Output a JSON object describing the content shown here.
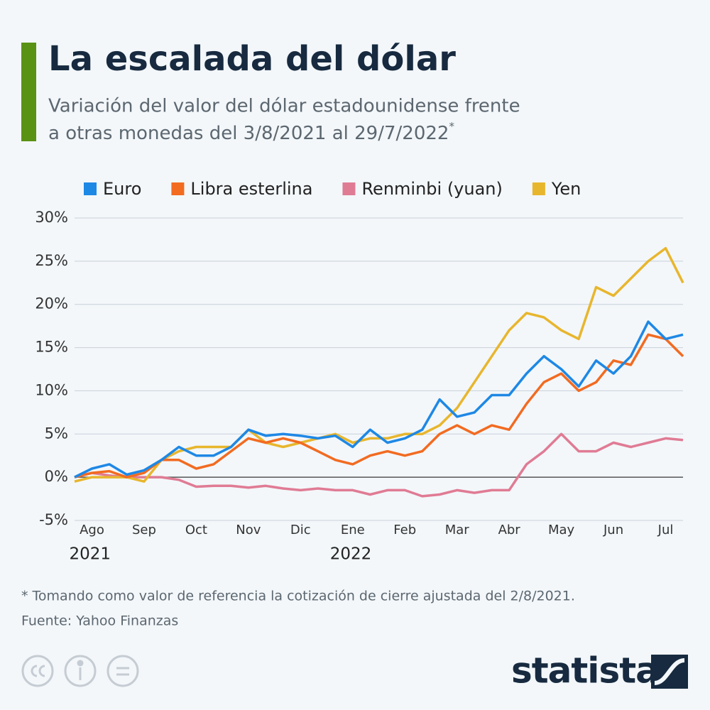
{
  "chart_data": {
    "type": "line",
    "title": "La escalada del dólar",
    "subtitle": [
      "Variación del valor del dólar estadounidense frente",
      "a otras monedas del 3/8/2021 al 29/7/2022"
    ],
    "subtitle_note_mark": "*",
    "categories": [
      null,
      "Ago",
      null,
      null,
      "Sep",
      null,
      null,
      "Oct",
      null,
      null,
      "Nov",
      null,
      null,
      "Dic",
      null,
      null,
      "Ene",
      null,
      null,
      "Feb",
      null,
      null,
      "Mar",
      null,
      null,
      "Abr",
      null,
      null,
      "May",
      null,
      null,
      "Jun",
      null,
      null,
      "Jul",
      null
    ],
    "x_groups": [
      {
        "label": "2021",
        "category": "Ago"
      },
      {
        "label": "2022",
        "category": "Ene"
      }
    ],
    "series": [
      {
        "name": "Euro",
        "color": "#1e88e5",
        "values": [
          0,
          1,
          1.5,
          0.3,
          0.8,
          2,
          3.5,
          2.5,
          2.5,
          3.5,
          5.5,
          4.8,
          5,
          4.8,
          4.5,
          4.8,
          3.5,
          5.5,
          4,
          4.5,
          5.5,
          9,
          7,
          7.5,
          9.5,
          9.5,
          12,
          14,
          12.5,
          10.5,
          13.5,
          12,
          14,
          18,
          16,
          16.5
        ]
      },
      {
        "name": "Libra esterlina",
        "color": "#f26b21",
        "values": [
          0,
          0.5,
          0.7,
          0,
          0.5,
          2,
          2,
          1,
          1.5,
          3,
          4.5,
          4,
          4.5,
          4,
          3,
          2,
          1.5,
          2.5,
          3,
          2.5,
          3,
          5,
          6,
          5,
          6,
          5.5,
          8.5,
          11,
          12,
          10,
          11,
          13.5,
          13,
          16.5,
          16,
          14
        ]
      },
      {
        "name": "Renminbi (yuan)",
        "color": "#e07b94",
        "values": [
          0,
          0.5,
          0.2,
          0,
          0,
          0,
          -0.3,
          -1.1,
          -1,
          -1,
          -1.2,
          -1,
          -1.3,
          -1.5,
          -1.3,
          -1.5,
          -1.5,
          -2,
          -1.5,
          -1.5,
          -2.2,
          -2,
          -1.5,
          -1.8,
          -1.5,
          -1.5,
          1.5,
          3,
          5,
          3,
          3,
          4,
          3.5,
          4,
          4.5,
          4.3
        ]
      },
      {
        "name": "Yen",
        "color": "#e8b62d",
        "values": [
          -0.5,
          0,
          0,
          0,
          -0.5,
          2,
          3,
          3.5,
          3.5,
          3.5,
          5.5,
          4,
          3.5,
          4,
          4.5,
          5,
          4,
          4.5,
          4.5,
          5,
          5,
          6,
          8,
          11,
          14,
          17,
          19,
          18.5,
          17,
          16,
          22,
          21,
          23,
          25,
          26.5,
          22.5
        ]
      }
    ],
    "ylim": [
      -5,
      30
    ],
    "yticks": [
      {
        "value": -5,
        "label": "-5%"
      },
      {
        "value": 0,
        "label": "0%"
      },
      {
        "value": 5,
        "label": "5%"
      },
      {
        "value": 10,
        "label": "10%"
      },
      {
        "value": 15,
        "label": "15%"
      },
      {
        "value": 20,
        "label": "20%"
      },
      {
        "value": 25,
        "label": "25%"
      },
      {
        "value": 30,
        "label": "30%"
      }
    ],
    "grid": true,
    "footnote": "* Tomando como valor de referencia la cotización de cierre ajustada del 2/8/2021.",
    "source": "Fuente: Yahoo Finanzas",
    "brand": "statista"
  }
}
